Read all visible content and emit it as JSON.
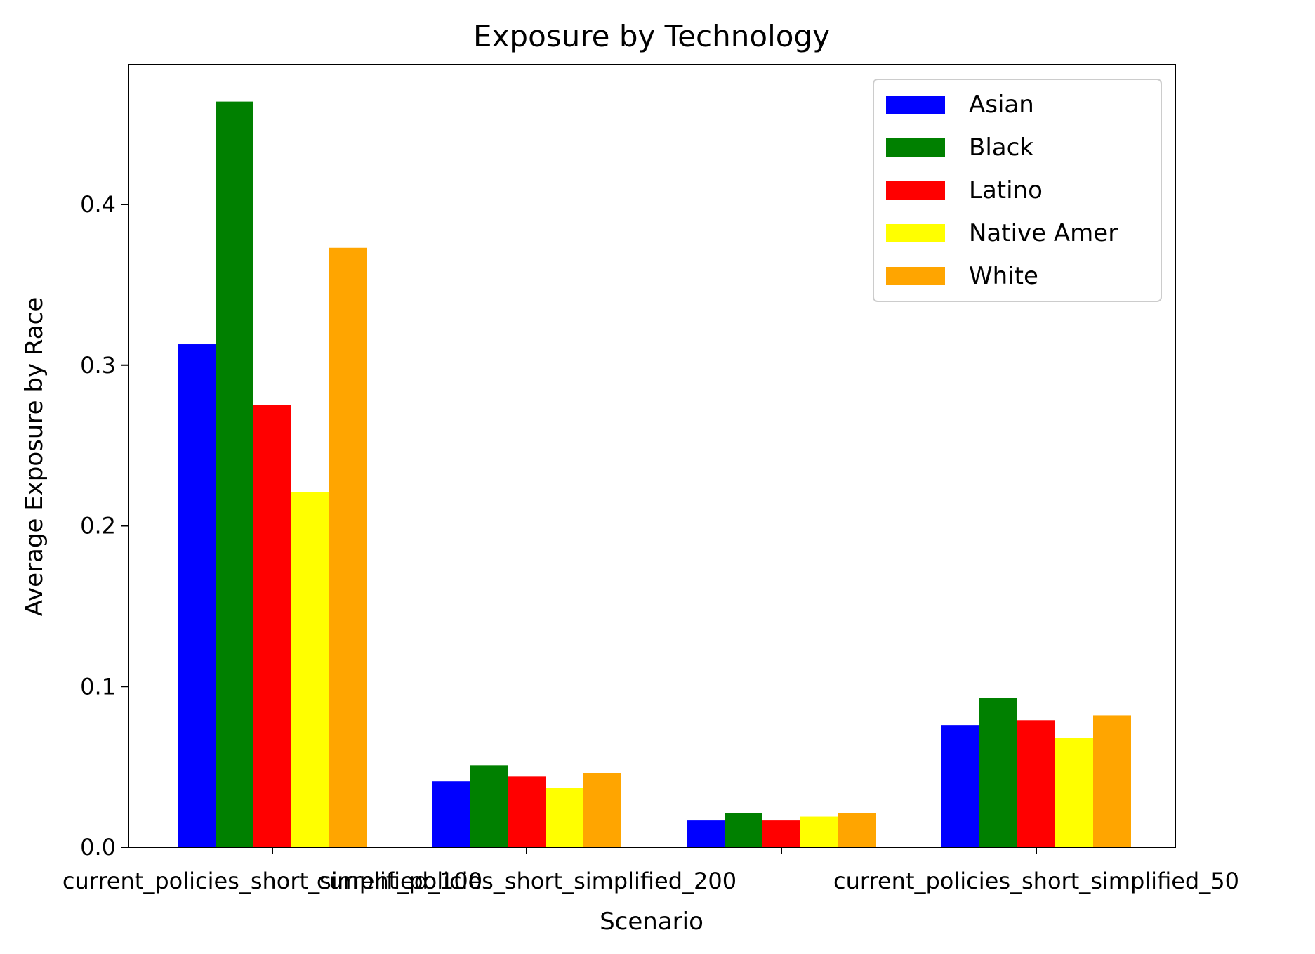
{
  "chart_data": {
    "type": "bar",
    "title": "Exposure by Technology",
    "xlabel": "Scenario",
    "ylabel": "Average Exposure by Race",
    "categories": [
      "current_policies_short_simplified_100",
      "current_policies_short_simplified_200",
      "current_policies_short_simplified_50",
      ""
    ],
    "category_display": [
      "current_policies_short_simplified_100",
      "current_policies_short_simplified_200",
      "current_policies_short_simplified_50"
    ],
    "series": [
      {
        "name": "Asian",
        "color": "#0000ff",
        "values": [
          0.313,
          0.041,
          0.017,
          0.076
        ]
      },
      {
        "name": "Black",
        "color": "#008000",
        "values": [
          0.464,
          0.051,
          0.021,
          0.093
        ]
      },
      {
        "name": "Latino",
        "color": "#ff0000",
        "values": [
          0.275,
          0.044,
          0.017,
          0.079
        ]
      },
      {
        "name": "Native Amer",
        "color": "#ffff00",
        "values": [
          0.221,
          0.037,
          0.019,
          0.068
        ]
      },
      {
        "name": "White",
        "color": "#ffa500",
        "values": [
          0.373,
          0.046,
          0.021,
          0.082
        ]
      }
    ],
    "ylim": [
      0,
      0.487
    ],
    "yticks": [
      0.0,
      0.1,
      0.2,
      0.3,
      0.4
    ],
    "ytick_labels": [
      "0.0",
      "0.1",
      "0.2",
      "0.3",
      "0.4"
    ],
    "legend_position": "top-right",
    "grid": false
  }
}
